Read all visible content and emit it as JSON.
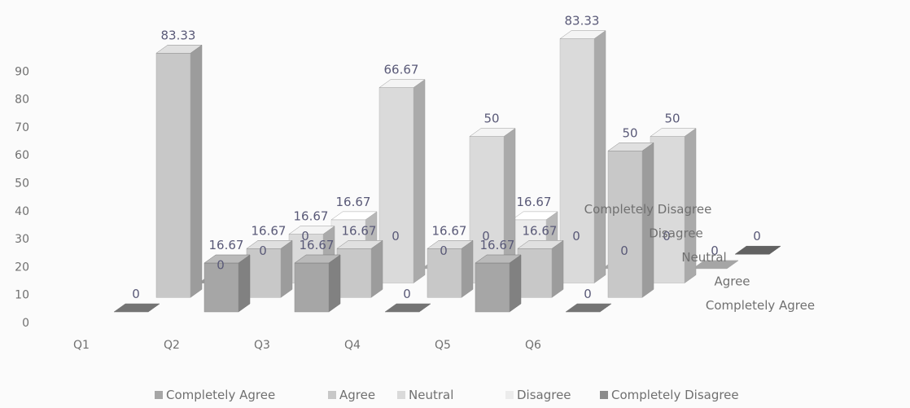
{
  "chart_data": {
    "type": "bar",
    "title": "",
    "xlabel": "",
    "ylabel": "",
    "categories": [
      "Q1",
      "Q2",
      "Q3",
      "Q4",
      "Q5",
      "Q6"
    ],
    "series": [
      {
        "name": "Completely Agree",
        "values": [
          0,
          16.67,
          16.67,
          0,
          16.67,
          0
        ]
      },
      {
        "name": "Agree",
        "values": [
          83.33,
          16.67,
          16.67,
          16.67,
          16.67,
          50
        ]
      },
      {
        "name": "Neutral",
        "values": [
          0,
          16.67,
          66.67,
          50,
          83.33,
          50
        ]
      },
      {
        "name": "Disagree",
        "values": [
          0,
          16.67,
          0,
          16.67,
          0,
          0
        ]
      },
      {
        "name": "Completely Disagree",
        "values": [
          0,
          0,
          0,
          0,
          0,
          0
        ]
      }
    ],
    "value_labels": [
      [
        "0",
        "16.67",
        "16.67",
        "0",
        "16.67",
        "0"
      ],
      [
        "83.33",
        "16.67",
        "16.67",
        "16.67",
        "16.67",
        "50"
      ],
      [
        "0",
        "16.67",
        "66.67",
        "50",
        "83.33",
        "50"
      ],
      [
        "0",
        "16.67",
        "0",
        "16.67",
        "0",
        "0"
      ],
      [
        "0",
        "0",
        "0",
        "0",
        "0",
        "0"
      ]
    ],
    "yticks": [
      "0",
      "10",
      "20",
      "30",
      "40",
      "50",
      "60",
      "70",
      "80",
      "90"
    ],
    "ylim": [
      0,
      90
    ],
    "grid": false,
    "legend_position": "bottom",
    "depth_axis_labels": [
      "Completely Agree",
      "Agree",
      "Neutral",
      "Disagree",
      "Completely Disagree"
    ],
    "colors": {
      "series_fill": [
        "#a6a6a6",
        "#c8c8c8",
        "#dadada",
        "#ececec",
        "#8c8c8c"
      ],
      "text": "#707070",
      "label": "#5a5a78"
    }
  }
}
